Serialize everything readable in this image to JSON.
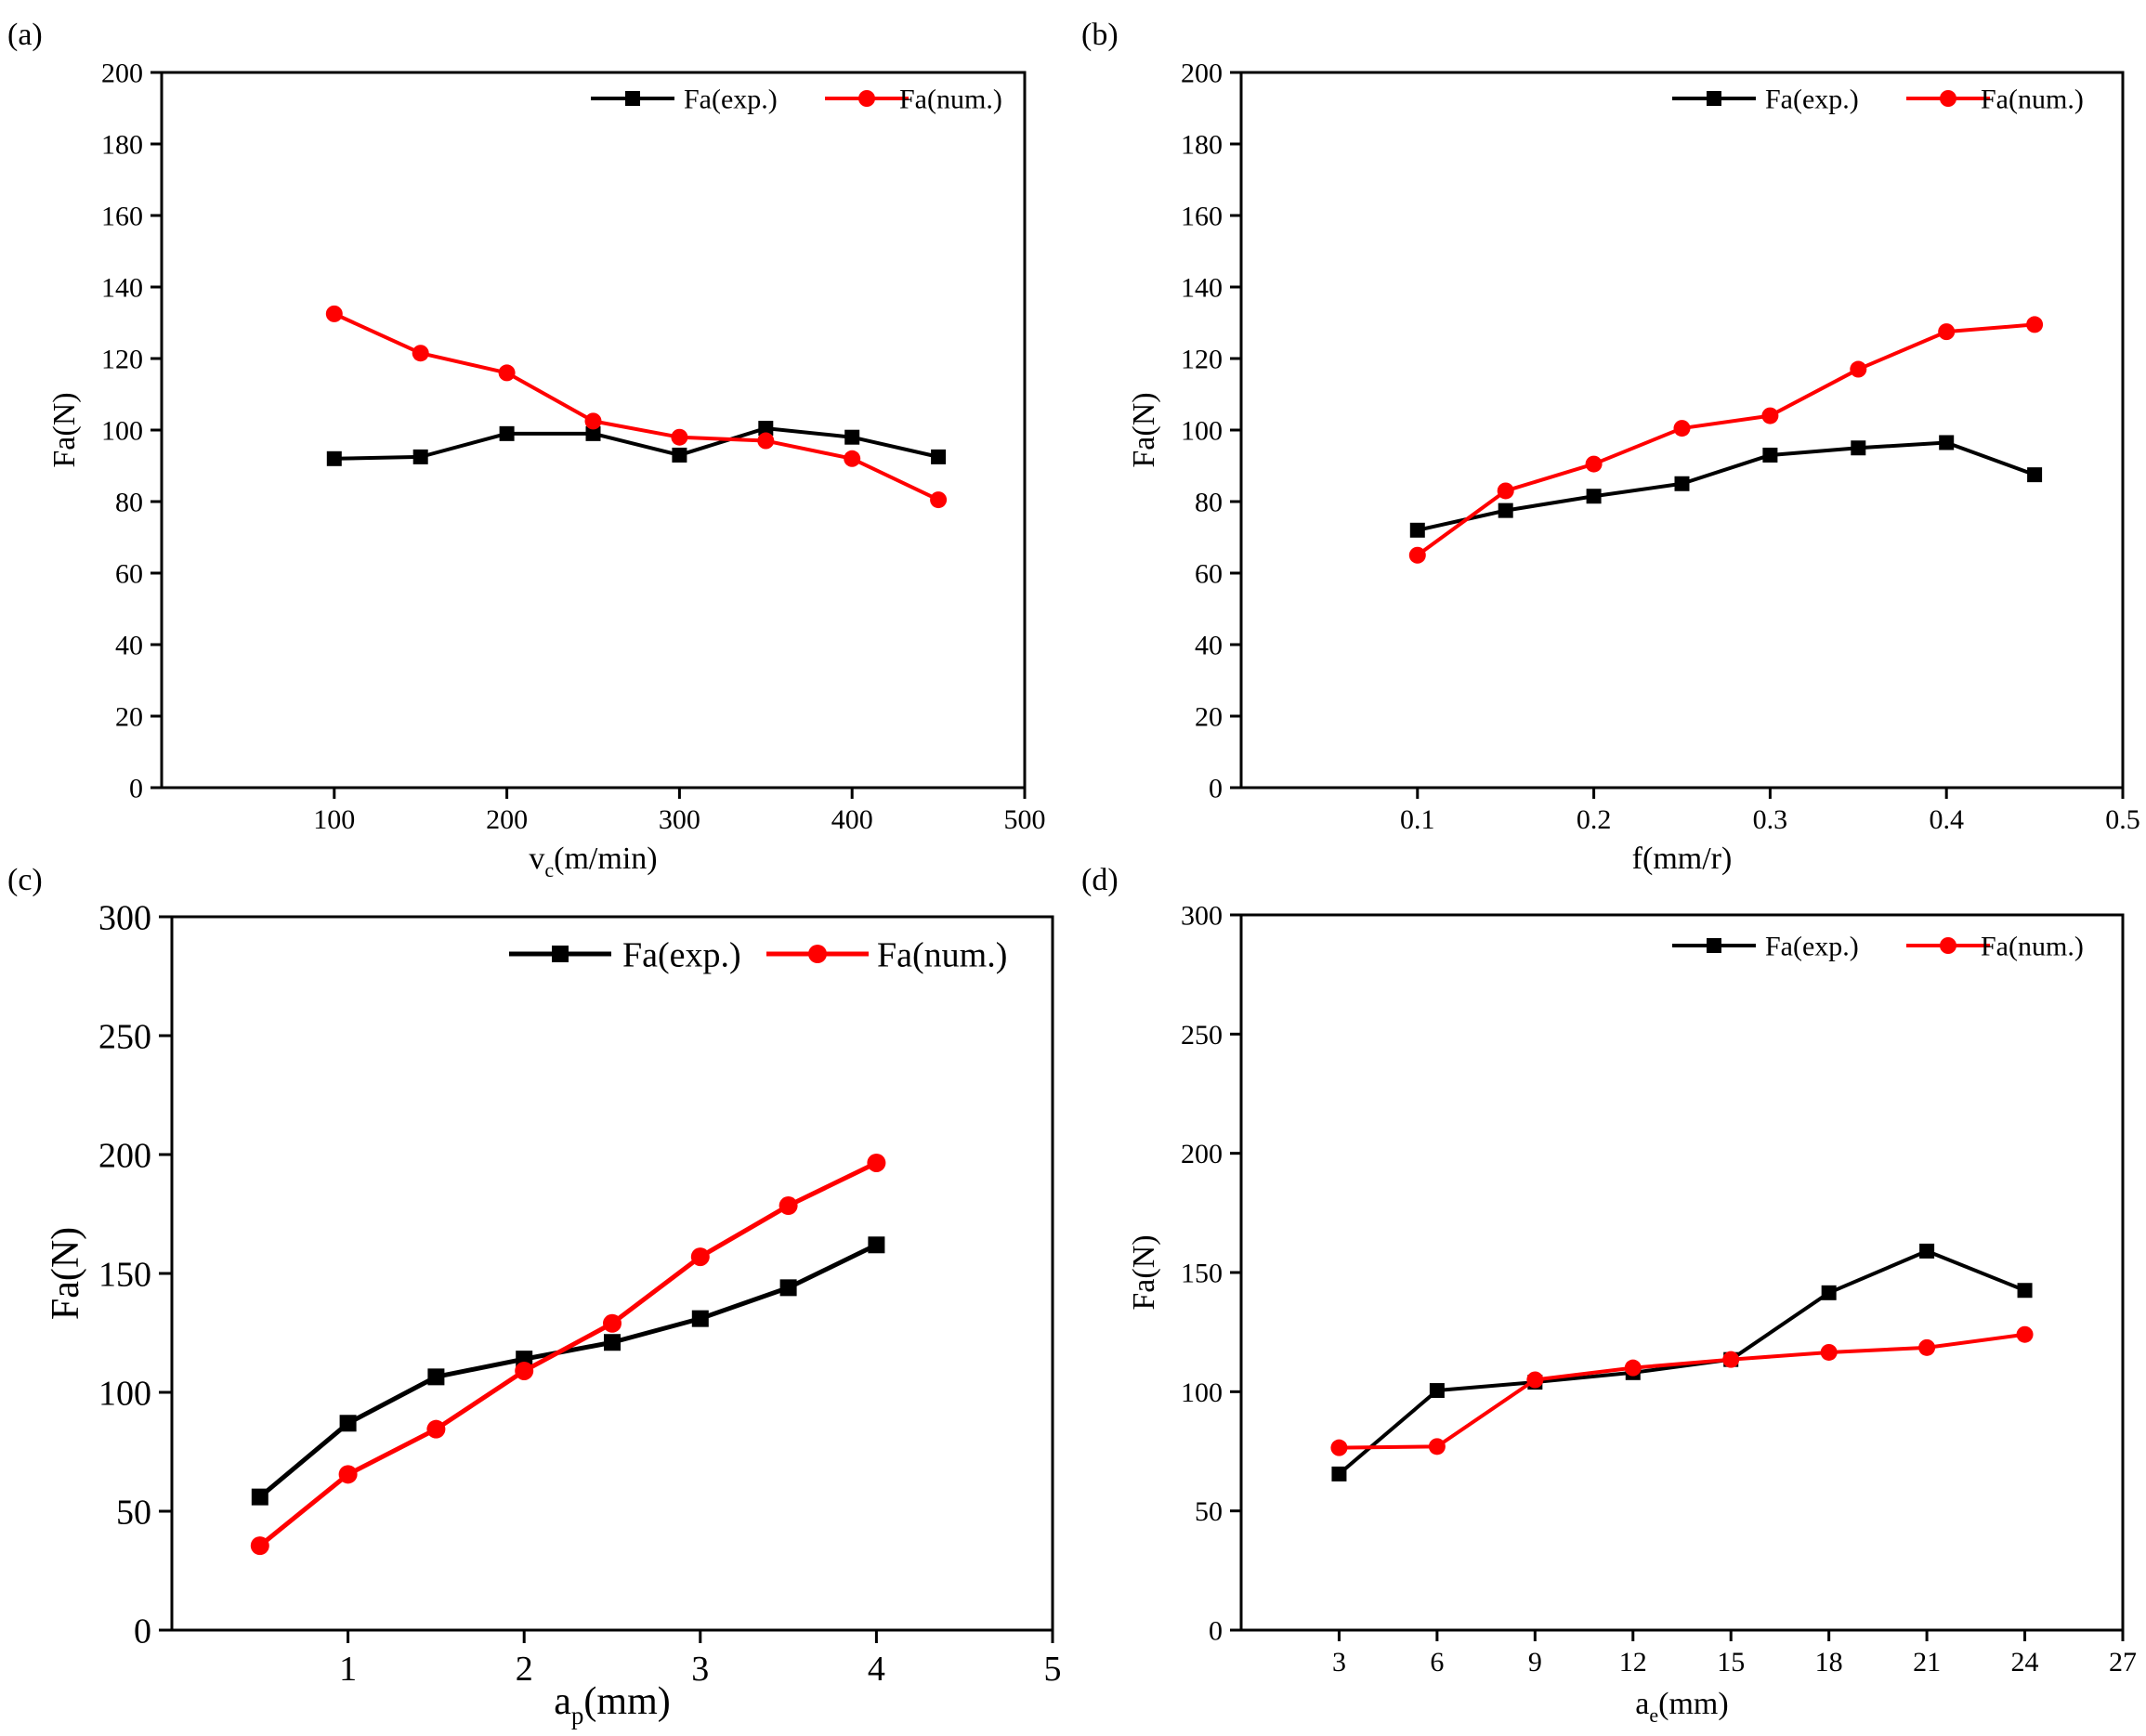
{
  "figure": {
    "series_names": [
      "Fa(exp.)",
      "Fa(num.)"
    ],
    "series_colors": {
      "exp": "#000000",
      "num": "#ff0000"
    }
  },
  "chart_data": [
    {
      "type": "line",
      "panel": "(a)",
      "xlabel_main": "v",
      "xlabel_sub": "c",
      "xlabel_rest": "(m/min)",
      "ylabel": "Fa(N)",
      "xlim": [
        0,
        500
      ],
      "ylim": [
        0,
        200
      ],
      "xticks": [
        100,
        200,
        300,
        400,
        500
      ],
      "yticks": [
        0,
        20,
        40,
        60,
        80,
        100,
        120,
        140,
        160,
        180,
        200
      ],
      "legend_position": "top-right",
      "series": [
        {
          "name": "Fa(exp.)",
          "key": "exp",
          "marker": "square",
          "x": [
            100,
            150,
            200,
            250,
            300,
            350,
            400,
            450
          ],
          "y": [
            92,
            92.5,
            99,
            99,
            93,
            100.5,
            98,
            92.5
          ]
        },
        {
          "name": "Fa(num.)",
          "key": "num",
          "marker": "circle",
          "x": [
            100,
            150,
            200,
            250,
            300,
            350,
            400,
            450
          ],
          "y": [
            132.5,
            121.5,
            116,
            102.5,
            98,
            97,
            92,
            80.5
          ]
        }
      ]
    },
    {
      "type": "line",
      "panel": "(b)",
      "xlabel_main": "f(mm/r)",
      "xlabel_sub": "",
      "xlabel_rest": "",
      "ylabel": "Fa(N)",
      "xlim": [
        0,
        0.5
      ],
      "ylim": [
        0,
        200
      ],
      "xticks": [
        0.1,
        0.2,
        0.3,
        0.4,
        0.5
      ],
      "yticks": [
        0,
        20,
        40,
        60,
        80,
        100,
        120,
        140,
        160,
        180,
        200
      ],
      "legend_position": "top-right",
      "series": [
        {
          "name": "Fa(exp.)",
          "key": "exp",
          "marker": "square",
          "x": [
            0.1,
            0.15,
            0.2,
            0.25,
            0.3,
            0.35,
            0.4,
            0.45
          ],
          "y": [
            72,
            77.5,
            81.5,
            85,
            93,
            95,
            96.5,
            87.5
          ]
        },
        {
          "name": "Fa(num.)",
          "key": "num",
          "marker": "circle",
          "x": [
            0.1,
            0.15,
            0.2,
            0.25,
            0.3,
            0.35,
            0.4,
            0.45
          ],
          "y": [
            65,
            83,
            90.5,
            100.5,
            104,
            117,
            127.5,
            129.5
          ]
        }
      ]
    },
    {
      "type": "line",
      "panel": "(c)",
      "xlabel_main": "a",
      "xlabel_sub": "p",
      "xlabel_rest": "(mm)",
      "ylabel": "Fa(N)",
      "xlim": [
        0,
        5
      ],
      "ylim": [
        0,
        300
      ],
      "xticks": [
        1,
        2,
        3,
        4,
        5
      ],
      "yticks": [
        0,
        50,
        100,
        150,
        200,
        250,
        300
      ],
      "legend_position": "top-right",
      "series": [
        {
          "name": "Fa(exp.)",
          "key": "exp",
          "marker": "square",
          "x": [
            0.5,
            1,
            1.5,
            2,
            2.5,
            3,
            3.5,
            4
          ],
          "y": [
            56,
            87,
            106.5,
            114,
            121,
            131,
            144,
            162
          ]
        },
        {
          "name": "Fa(num.)",
          "key": "num",
          "marker": "circle",
          "x": [
            0.5,
            1,
            1.5,
            2,
            2.5,
            3,
            3.5,
            4
          ],
          "y": [
            35.5,
            65.5,
            84.5,
            109,
            129,
            157,
            178.5,
            196.5
          ]
        }
      ]
    },
    {
      "type": "line",
      "panel": "(d)",
      "xlabel_main": "a",
      "xlabel_sub": "e",
      "xlabel_rest": "(mm)",
      "ylabel": "Fa(N)",
      "xlim": [
        0,
        27
      ],
      "ylim": [
        0,
        300
      ],
      "xticks": [
        3,
        6,
        9,
        12,
        15,
        18,
        21,
        24,
        27
      ],
      "yticks": [
        0,
        50,
        100,
        150,
        200,
        250,
        300
      ],
      "legend_position": "top-right",
      "series": [
        {
          "name": "Fa(exp.)",
          "key": "exp",
          "marker": "square",
          "x": [
            3,
            6,
            9,
            12,
            15,
            18,
            21,
            24
          ],
          "y": [
            65.5,
            100.5,
            104,
            108,
            113.5,
            141.5,
            159,
            142.5
          ]
        },
        {
          "name": "Fa(num.)",
          "key": "num",
          "marker": "circle",
          "x": [
            3,
            6,
            9,
            12,
            15,
            18,
            21,
            24
          ],
          "y": [
            76.5,
            77,
            105,
            110,
            113.5,
            116.5,
            118.5,
            124
          ]
        }
      ]
    }
  ]
}
